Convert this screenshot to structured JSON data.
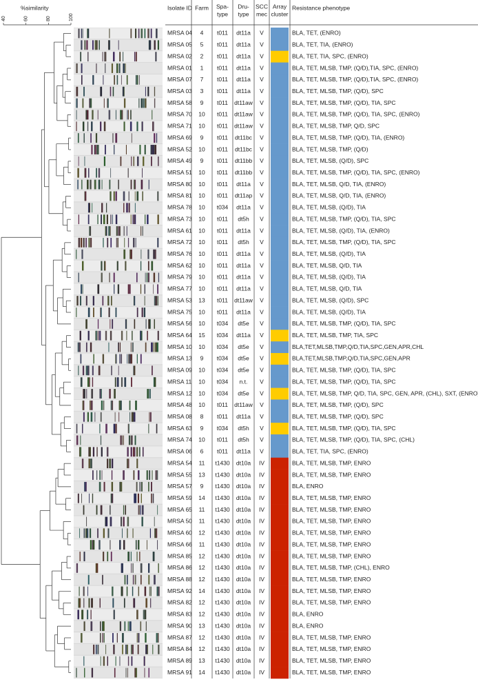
{
  "scale": {
    "label": "%similarity",
    "ticks": [
      40,
      60,
      80,
      100
    ]
  },
  "header": [
    [
      "Isolate ID"
    ],
    [
      "Farm"
    ],
    [
      "Spa-",
      "type"
    ],
    [
      "Dru-",
      "type"
    ],
    [
      "SCC",
      "mec"
    ],
    [
      "Array",
      "cluster"
    ],
    [
      "Resistance phenotype"
    ]
  ],
  "rows": [
    [
      "MRSA 04",
      "4",
      "t011",
      "dt11a",
      "V",
      "#6699cc",
      "BLA, TET, (ENRO)"
    ],
    [
      "MRSA 05",
      "5",
      "t011",
      "dt11a",
      "V",
      "#6699cc",
      "BLA, TET, TIA, (ENRO)"
    ],
    [
      "MRSA 02",
      "2",
      "t011",
      "dt11a",
      "V",
      "#ffcc00",
      "BLA, TET,  TIA, SPC, (ENRO)"
    ],
    [
      "MRSA 01",
      "1",
      "t011",
      "dt11a",
      "V",
      "#6699cc",
      "BLA, TET, MLSB, TMP, (Q/D),TIA, SPC, (ENRO)"
    ],
    [
      "MRSA 07",
      "7",
      "t011",
      "dt11a",
      "V",
      "#6699cc",
      "BLA, TET, MLSB, TMP, (Q/D),TIA, SPC, (ENRO)"
    ],
    [
      "MRSA 03",
      "3",
      "t011",
      "dt11a",
      "V",
      "#6699cc",
      "BLA, TET, MLSB, TMP, (Q/D), SPC"
    ],
    [
      "MRSA 58",
      "9",
      "t011",
      "dt11aw",
      "V",
      "#6699cc",
      "BLA, TET, MLSB, TMP, (Q/D), TIA, SPC"
    ],
    [
      "MRSA 70",
      "10",
      "t011",
      "dt11aw",
      "V",
      "#6699cc",
      "BLA, TET, MLSB, TMP, (Q/D), TIA, SPC, (ENRO)"
    ],
    [
      "MRSA 71",
      "10",
      "t011",
      "dt11aw",
      "V",
      "#6699cc",
      "BLA, TET, MLSB, TMP, Q/D, SPC"
    ],
    [
      "MRSA 69",
      "9",
      "t011",
      "dt11bc",
      "V",
      "#6699cc",
      "BLA, TET, MLSB, TMP, (Q/D), TIA, (ENRO)"
    ],
    [
      "MRSA 52",
      "10",
      "t011",
      "dt11bc",
      "V",
      "#6699cc",
      "BLA, TET, MLSB, TMP, (Q/D)"
    ],
    [
      "MRSA 49",
      "9",
      "t011",
      "dt11bb",
      "V",
      "#6699cc",
      "BLA, TET, MLSB,  (Q/D), SPC"
    ],
    [
      "MRSA 51",
      "10",
      "t011",
      "dt11bb",
      "V",
      "#6699cc",
      "BLA, TET, MLSB, TMP, (Q/D), TIA, SPC, (ENRO)"
    ],
    [
      "MRSA 80",
      "10",
      "t011",
      "dt11a",
      "V",
      "#6699cc",
      "BLA, TET, MLSB, Q/D, TIA, (ENRO)"
    ],
    [
      "MRSA 81",
      "10",
      "t011",
      "dt11ap",
      "V",
      "#6699cc",
      "BLA, TET, MLSB, Q/D, TIA, (ENRO)"
    ],
    [
      "MRSA 78",
      "10",
      "t034",
      "dt11a",
      "V",
      "#6699cc",
      "BLA, TET, MLSB,  (Q/D), TIA"
    ],
    [
      "MRSA 73",
      "10",
      "t011",
      "dt5h",
      "V",
      "#6699cc",
      "BLA, TET, MLSB, TMP, (Q/D), TIA, SPC"
    ],
    [
      "MRSA 61",
      "10",
      "t011",
      "dt11a",
      "V",
      "#6699cc",
      "BLA, TET, MLSB, (Q/D), TIA, (ENRO)"
    ],
    [
      "MRSA 72",
      "10",
      "t011",
      "dt5h",
      "V",
      "#6699cc",
      "BLA, TET, MLSB, TMP, (Q/D), TIA, SPC"
    ],
    [
      "MRSA 76",
      "10",
      "t011",
      "dt11a",
      "V",
      "#6699cc",
      "BLA, TET, MLSB,  (Q/D), TIA"
    ],
    [
      "MRSA 62",
      "10",
      "t011",
      "dt11a",
      "V",
      "#6699cc",
      "BLA, TET, MLSB, Q/D, TIA"
    ],
    [
      "MRSA 79",
      "10",
      "t011",
      "dt11a",
      "V",
      "#6699cc",
      "BLA, TET, MLSB,  (Q/D), TIA"
    ],
    [
      "MRSA 77",
      "10",
      "t011",
      "dt11a",
      "V",
      "#6699cc",
      "BLA, TET, MLSB,  Q/D, TIA"
    ],
    [
      "MRSA 53",
      "13",
      "t011",
      "dt11aw",
      "V",
      "#6699cc",
      "BLA, TET, MLSB, (Q/D), SPC"
    ],
    [
      "MRSA 75",
      "10",
      "t011",
      "dt11a",
      "V",
      "#6699cc",
      "BLA, TET, MLSB,  (Q/D), TIA"
    ],
    [
      "MRSA 56",
      "10",
      "t034",
      "dt5e",
      "V",
      "#6699cc",
      "BLA, TET, MLSB, TMP, (Q/D), TIA, SPC"
    ],
    [
      "MRSA 64",
      "15",
      "t034",
      "dt11a",
      "V",
      "#ffcc00",
      "BLA, TET, MLSB, TMP, TIA, SPC"
    ],
    [
      "MRSA 10",
      "10",
      "t034",
      "dt5e",
      "V",
      "#6699cc",
      "BLA,TET,MLSB,TMP,Q/D,TIA,SPC,GEN,APR,CHL"
    ],
    [
      "MRSA 13",
      "9",
      "t034",
      "dt5e",
      "V",
      "#ffcc00",
      "BLA,TET,MLSB,TMP,Q/D,TIA,SPC,GEN,APR"
    ],
    [
      "MRSA 09",
      "10",
      "t034",
      "dt5e",
      "V",
      "#6699cc",
      "BLA, TET, MLSB, TMP, (Q/D), TIA, SPC"
    ],
    [
      "MRSA 11",
      "10",
      "t034",
      "n.t.",
      "V",
      "#6699cc",
      "BLA, TET, MLSB, TMP, (Q/D), TIA, SPC"
    ],
    [
      "MRSA 12",
      "10",
      "t034",
      "dt5e",
      "V",
      "#ffcc00",
      "BLA, TET, MLSB, TMP, Q/D, TIA, SPC, GEN, APR, (CHL), SXT, (ENRO)"
    ],
    [
      "MRSA 48",
      "10",
      "t011",
      "dt11aw",
      "V",
      "#6699cc",
      "BLA, TET, MLSB, TMP, (Q/D), SPC"
    ],
    [
      "MRSA 08",
      "8",
      "t011",
      "dt11a",
      "V",
      "#6699cc",
      "BLA, TET, MLSB, TMP, (Q/D), SPC"
    ],
    [
      "MRSA 63",
      "9",
      "t034",
      "dt5h",
      "V",
      "#ffcc00",
      "BLA, TET, MLSB, TMP, (Q/D), TIA, SPC"
    ],
    [
      "MRSA 74",
      "10",
      "t011",
      "dt5h",
      "V",
      "#6699cc",
      "BLA, TET, MLSB, TMP, (Q/D), TIA, SPC, (CHL)"
    ],
    [
      "MRSA 06",
      "6",
      "t011",
      "dt11a",
      "V",
      "#6699cc",
      "BLA, TET, TIA, SPC, (ENRO)"
    ],
    [
      "MRSA 54",
      "11",
      "t1430",
      "dt10a",
      "IV",
      "#cc2200",
      "BLA, TET, MLSB, TMP, ENRO"
    ],
    [
      "MRSA 55",
      "13",
      "t1430",
      "dt10a",
      "IV",
      "#cc2200",
      "BLA, TET, MLSB, TMP, ENRO"
    ],
    [
      "MRSA 57",
      "9",
      "t1430",
      "dt10a",
      "IV",
      "#cc2200",
      "BLA, ENRO"
    ],
    [
      "MRSA 59",
      "14",
      "t1430",
      "dt10a",
      "IV",
      "#cc2200",
      "BLA, TET, MLSB, TMP, ENRO"
    ],
    [
      "MRSA 65",
      "11",
      "t1430",
      "dt10a",
      "IV",
      "#cc2200",
      "BLA, TET, MLSB, TMP, ENRO"
    ],
    [
      "MRSA 50",
      "11",
      "t1430",
      "dt10a",
      "IV",
      "#cc2200",
      "BLA, TET, MLSB, TMP, ENRO"
    ],
    [
      "MRSA 60",
      "12",
      "t1430",
      "dt10a",
      "IV",
      "#cc2200",
      "BLA, TET, MLSB, TMP, ENRO"
    ],
    [
      "MRSA 66",
      "11",
      "t1430",
      "dt10a",
      "IV",
      "#cc2200",
      "BLA, TET, MLSB, TMP, ENRO"
    ],
    [
      "MRSA 85",
      "12",
      "t1430",
      "dt10a",
      "IV",
      "#cc2200",
      "BLA, TET, MLSB, TMP, ENRO"
    ],
    [
      "MRSA 86",
      "12",
      "t1430",
      "dt10a",
      "IV",
      "#cc2200",
      "BLA, TET, MLSB, TMP, (CHL), ENRO"
    ],
    [
      "MRSA 88",
      "12",
      "t1430",
      "dt10a",
      "IV",
      "#cc2200",
      "BLA, TET, MLSB, TMP, ENRO"
    ],
    [
      "MRSA 92",
      "14",
      "t1430",
      "dt10a",
      "IV",
      "#cc2200",
      "BLA, TET, MLSB, TMP, ENRO"
    ],
    [
      "MRSA 82",
      "12",
      "t1430",
      "dt10a",
      "IV",
      "#cc2200",
      "BLA, TET, MLSB, TMP, ENRO"
    ],
    [
      "MRSA 83",
      "12",
      "t1430",
      "dt10a",
      "IV",
      "#cc2200",
      "BLA, ENRO"
    ],
    [
      "MRSA 90",
      "13",
      "t1430",
      "dt10a",
      "IV",
      "#cc2200",
      "BLA, ENRO"
    ],
    [
      "MRSA 87",
      "12",
      "t1430",
      "dt10a",
      "IV",
      "#cc2200",
      "BLA, TET, MLSB, TMP, ENRO"
    ],
    [
      "MRSA 84",
      "12",
      "t1430",
      "dt10a",
      "IV",
      "#cc2200",
      "BLA, TET, MLSB, TMP, ENRO"
    ],
    [
      "MRSA 89",
      "13",
      "t1430",
      "dt10a",
      "IV",
      "#cc2200",
      "BLA, TET, MLSB, TMP, ENRO"
    ],
    [
      "MRSA 91",
      "14",
      "t1430",
      "dt10a",
      "IV",
      "#cc2200",
      "BLA, TET, MLSB, TMP, ENRO"
    ]
  ]
}
